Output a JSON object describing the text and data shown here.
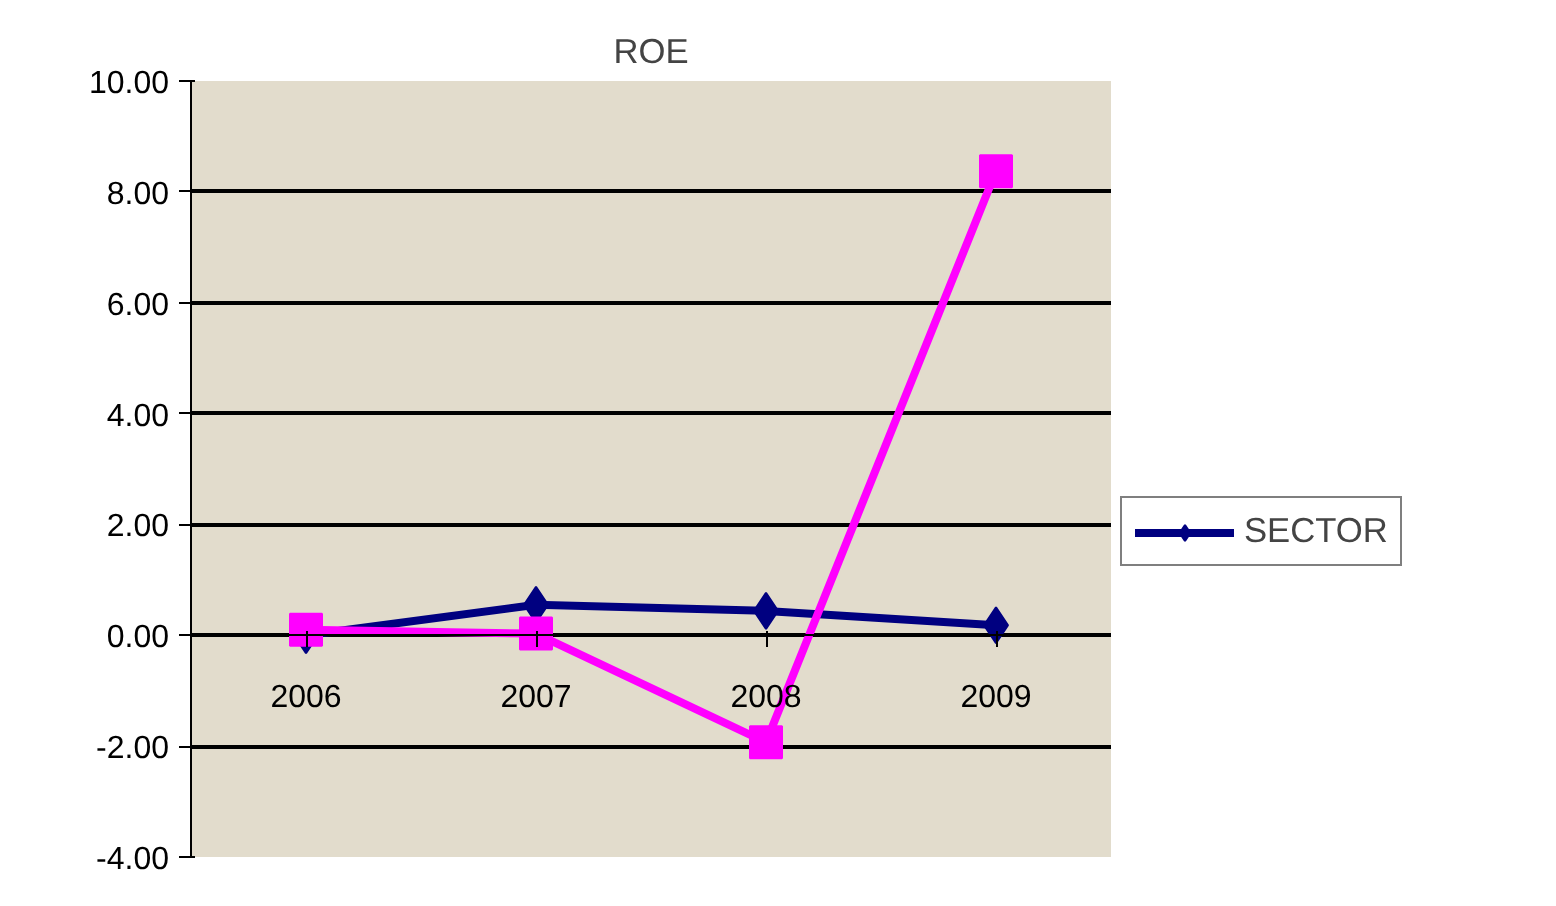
{
  "chart_data": {
    "type": "line",
    "title": "ROE",
    "categories": [
      "2006",
      "2007",
      "2008",
      "2009"
    ],
    "series": [
      {
        "name": "SECTOR",
        "color": "#000080",
        "marker": "diamond",
        "values": [
          0.0,
          0.55,
          0.44,
          0.18
        ]
      },
      {
        "color": "#ff00ff",
        "marker": "square",
        "values": [
          0.1,
          0.03,
          -1.93,
          8.37
        ]
      }
    ],
    "ylim": [
      -4,
      10
    ],
    "yticks": [
      {
        "value": -4,
        "label": "-4.00"
      },
      {
        "value": -2,
        "label": "-2.00"
      },
      {
        "value": 0,
        "label": "0.00"
      },
      {
        "value": 2,
        "label": "2.00"
      },
      {
        "value": 4,
        "label": "4.00"
      },
      {
        "value": 6,
        "label": "6.00"
      },
      {
        "value": 8,
        "label": "8.00"
      },
      {
        "value": 10,
        "label": "10.00"
      }
    ],
    "grid": "y",
    "legend": "right"
  }
}
